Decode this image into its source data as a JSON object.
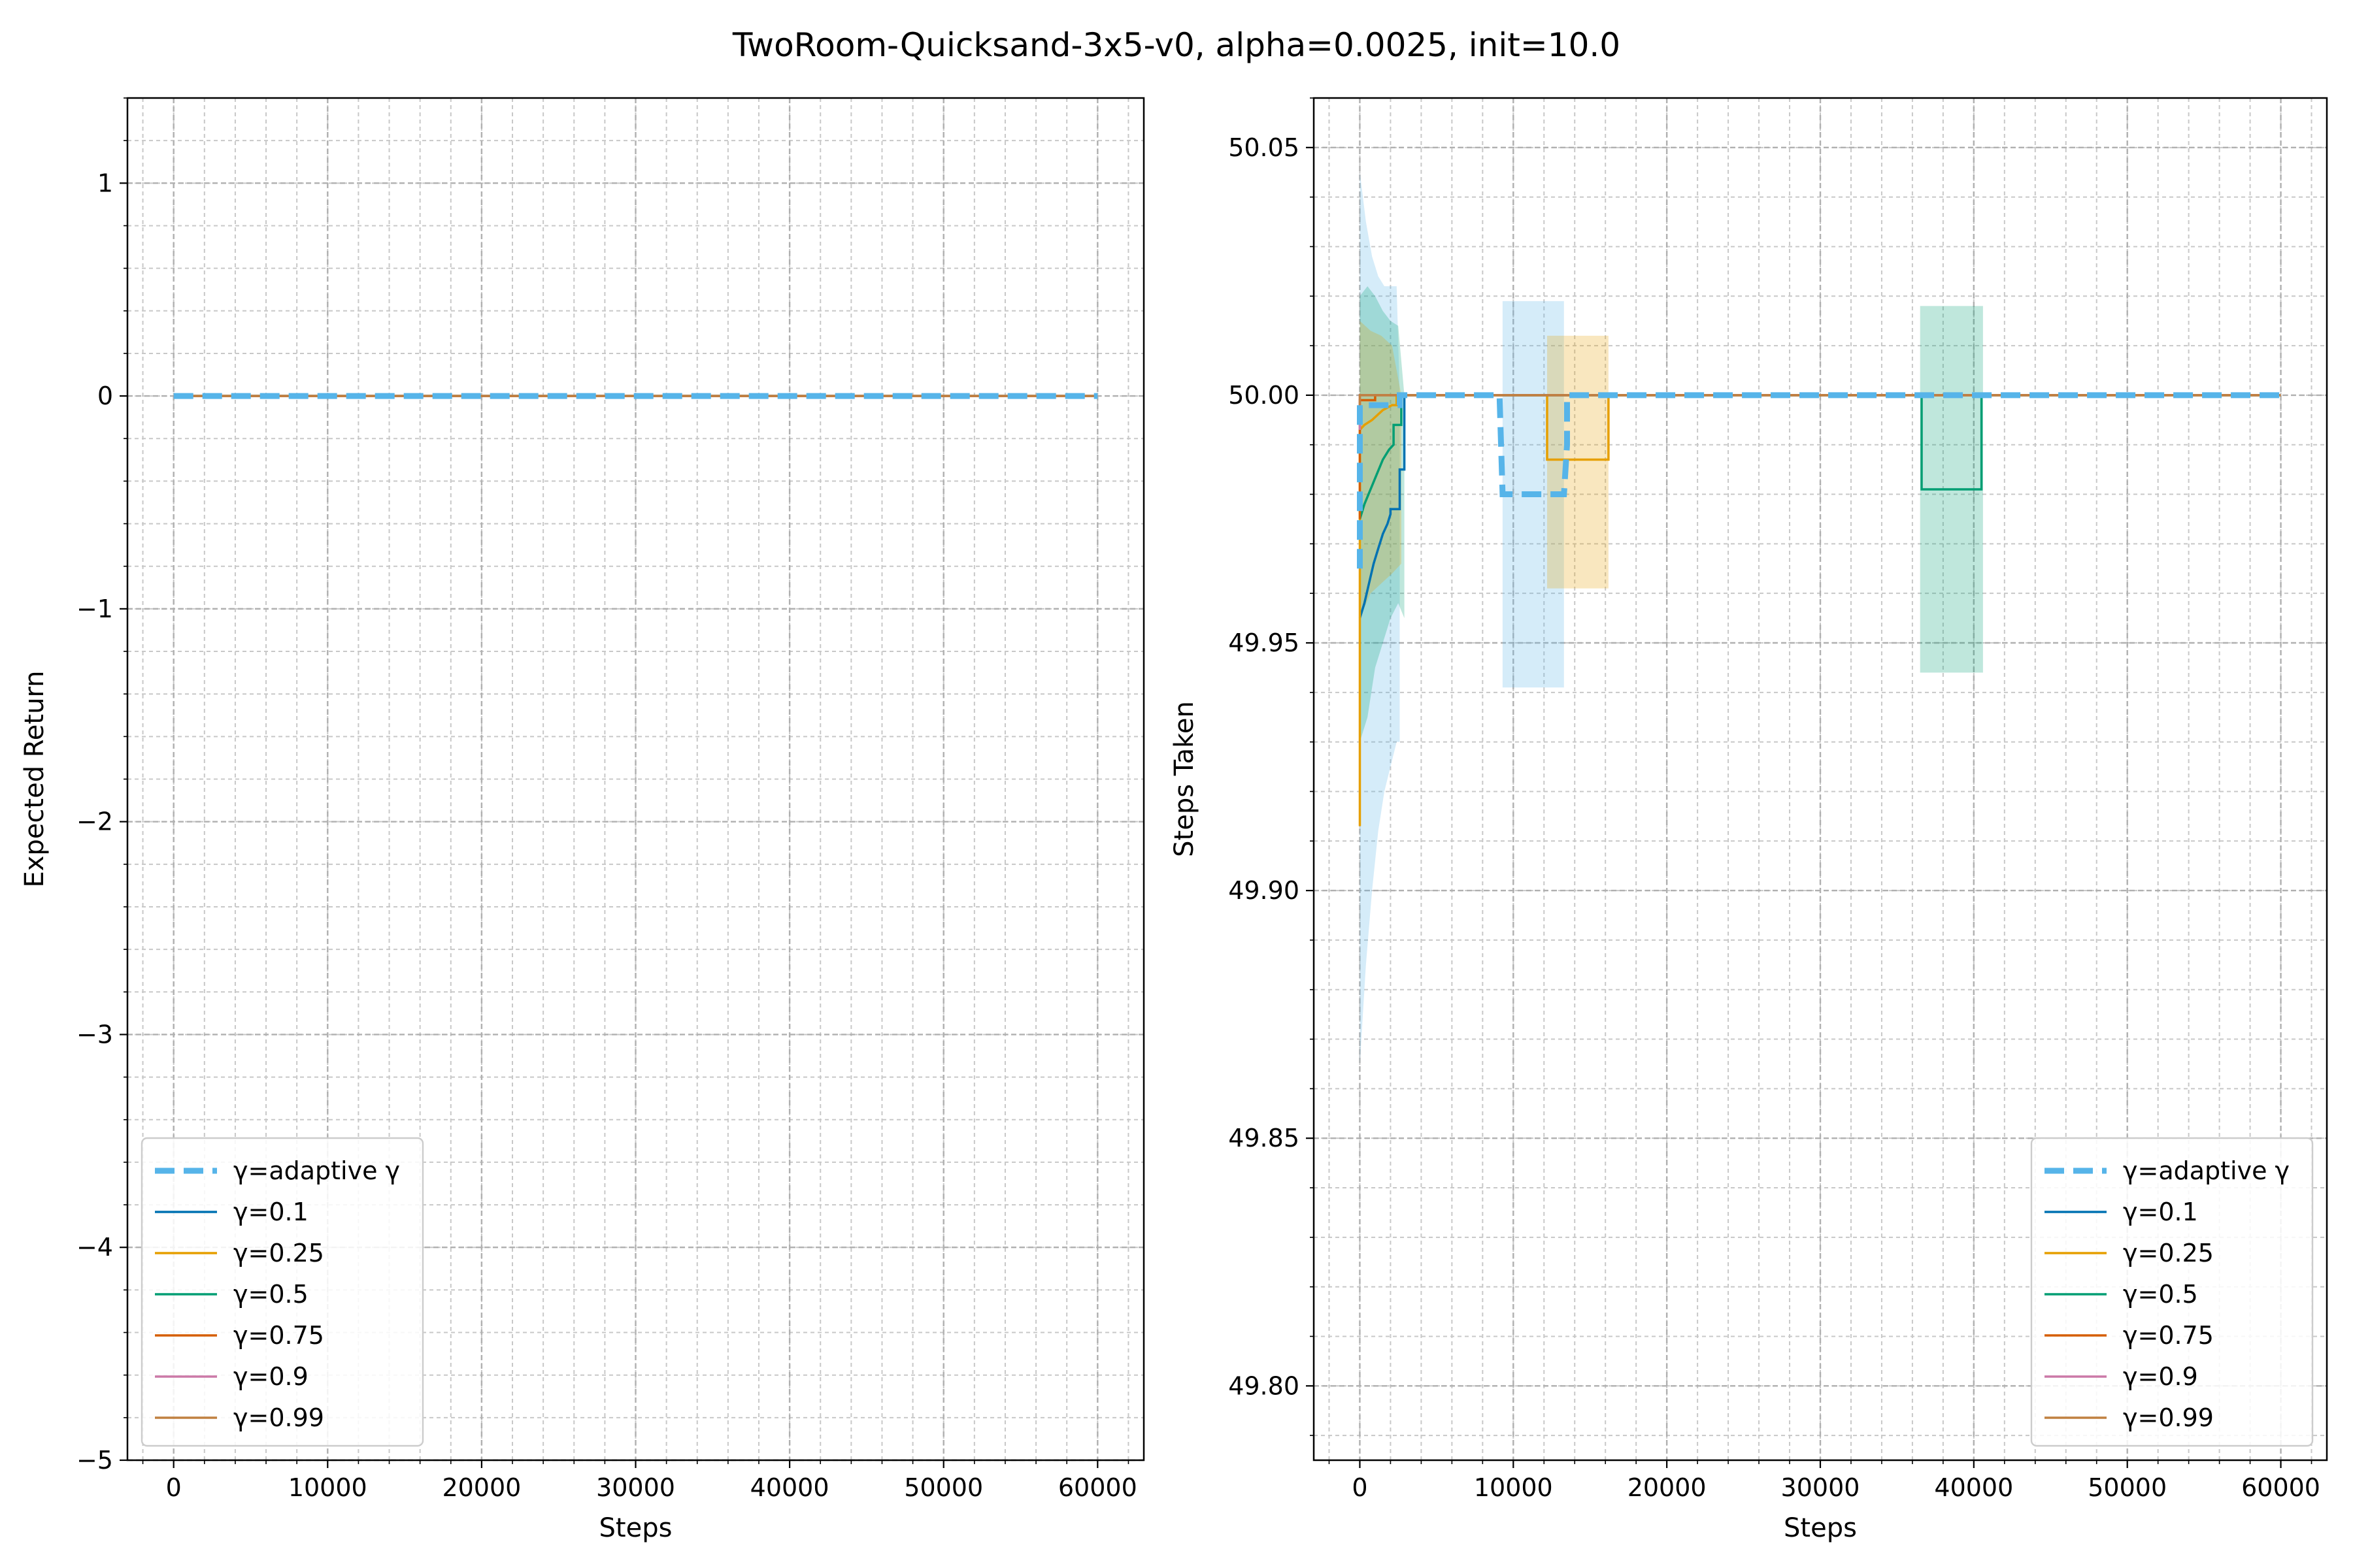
{
  "figure": {
    "title": "TwoRoom-Quicksand-3x5-v0, alpha=0.0025, init=10.0"
  },
  "styles": {
    "colors": {
      "adaptive": "#56B4E9",
      "g01": "#0072B2",
      "g025": "#E69F00",
      "g05": "#009E73",
      "g075": "#D55E00",
      "g09": "#CC79A7",
      "g099": "#C08040"
    }
  },
  "chart_data": [
    {
      "type": "line",
      "xlabel": "Steps",
      "ylabel": "Expected Return",
      "xlim": [
        -3000,
        63000
      ],
      "ylim": [
        -5,
        1.4
      ],
      "xticks": [
        0,
        10000,
        20000,
        30000,
        40000,
        50000,
        60000
      ],
      "xtick_labels": [
        "0",
        "10000",
        "20000",
        "30000",
        "40000",
        "50000",
        "60000"
      ],
      "yticks": [
        1,
        0,
        -1,
        -2,
        -3,
        -4,
        -5
      ],
      "ytick_labels": [
        "1",
        "0",
        "−1",
        "−2",
        "−3",
        "−4",
        "−5"
      ],
      "grid": true,
      "legend_position": "lower left",
      "series": [
        {
          "name": "γ=adaptive γ",
          "color_key": "adaptive",
          "dashed": true,
          "x": [
            0,
            60000
          ],
          "y": [
            0,
            0
          ]
        },
        {
          "name": "γ=0.1",
          "color_key": "g01",
          "x": [
            0,
            60000
          ],
          "y": [
            0,
            0
          ]
        },
        {
          "name": "γ=0.25",
          "color_key": "g025",
          "x": [
            0,
            60000
          ],
          "y": [
            0,
            0
          ]
        },
        {
          "name": "γ=0.5",
          "color_key": "g05",
          "x": [
            0,
            60000
          ],
          "y": [
            0,
            0
          ]
        },
        {
          "name": "γ=0.75",
          "color_key": "g075",
          "x": [
            0,
            60000
          ],
          "y": [
            0,
            0
          ]
        },
        {
          "name": "γ=0.9",
          "color_key": "g09",
          "x": [
            0,
            60000
          ],
          "y": [
            0,
            0
          ]
        },
        {
          "name": "γ=0.99",
          "color_key": "g099",
          "x": [
            0,
            60000
          ],
          "y": [
            0,
            0
          ]
        }
      ]
    },
    {
      "type": "line",
      "xlabel": "Steps",
      "ylabel": "Steps Taken",
      "xlim": [
        -3000,
        63000
      ],
      "ylim": [
        49.785,
        50.06
      ],
      "xticks": [
        0,
        10000,
        20000,
        30000,
        40000,
        50000,
        60000
      ],
      "xtick_labels": [
        "0",
        "10000",
        "20000",
        "30000",
        "40000",
        "50000",
        "60000"
      ],
      "yticks": [
        50.05,
        50.0,
        49.95,
        49.9,
        49.85,
        49.8
      ],
      "ytick_labels": [
        "50.05",
        "50.00",
        "49.95",
        "49.90",
        "49.85",
        "49.80"
      ],
      "grid": true,
      "legend_position": "lower right",
      "bands": [
        {
          "color_key": "adaptive",
          "x": [
            0,
            400,
            800,
            1200,
            1600,
            2000,
            2400,
            2600
          ],
          "upper": [
            50.045,
            50.035,
            50.028,
            50.024,
            50.022,
            50.022,
            50.022,
            50.0
          ],
          "lower": [
            49.865,
            49.885,
            49.9,
            49.912,
            49.92,
            49.925,
            49.93,
            49.93
          ]
        },
        {
          "color_key": "g05",
          "x": [
            0,
            500,
            1000,
            1500,
            2000,
            2500,
            2900
          ],
          "upper": [
            50.02,
            50.022,
            50.02,
            50.017,
            50.015,
            50.014,
            50.0
          ],
          "lower": [
            49.93,
            49.935,
            49.945,
            49.95,
            49.955,
            49.958,
            49.955
          ]
        },
        {
          "color_key": "g025",
          "x": [
            0,
            700,
            1400,
            2100,
            2700
          ],
          "upper": [
            50.015,
            50.013,
            50.012,
            50.01,
            50.0
          ],
          "lower": [
            49.955,
            49.96,
            49.962,
            49.964,
            49.966
          ]
        },
        {
          "color_key": "adaptive",
          "x": [
            9300,
            13300
          ],
          "upper": [
            50.019,
            50.019
          ],
          "lower": [
            49.941,
            49.941
          ]
        },
        {
          "color_key": "g025",
          "x": [
            12200,
            16200
          ],
          "upper": [
            50.012,
            50.012
          ],
          "lower": [
            49.961,
            49.961
          ]
        },
        {
          "color_key": "g05",
          "x": [
            36500,
            40600
          ],
          "upper": [
            50.018,
            50.018
          ],
          "lower": [
            49.944,
            49.944
          ]
        }
      ],
      "series": [
        {
          "name": "γ=adaptive γ",
          "color_key": "adaptive",
          "dashed": true,
          "x": [
            0,
            0,
            2600,
            2600,
            9000,
            9100,
            9300,
            13300,
            13500,
            13500,
            60000
          ],
          "y": [
            49.965,
            49.998,
            49.998,
            50.0,
            50.0,
            50.0,
            49.98,
            49.98,
            49.99,
            50.0,
            50.0
          ]
        },
        {
          "name": "γ=0.1",
          "color_key": "g01",
          "x": [
            0,
            300,
            600,
            900,
            1200,
            1500,
            1800,
            2000,
            2000,
            2600,
            2600,
            2900,
            2900,
            60000
          ],
          "y": [
            49.955,
            49.958,
            49.962,
            49.966,
            49.969,
            49.972,
            49.974,
            49.976,
            49.977,
            49.977,
            49.985,
            49.985,
            50.0,
            50.0
          ]
        },
        {
          "name": "γ=0.25",
          "color_key": "g025",
          "x": [
            0,
            0,
            300,
            800,
            1500,
            2100,
            2400,
            2400,
            12200,
            12200,
            16200,
            16200,
            60000
          ],
          "y": [
            49.913,
            49.993,
            49.994,
            49.995,
            49.997,
            49.998,
            49.998,
            50.0,
            50.0,
            49.987,
            49.987,
            50.0,
            50.0
          ]
        },
        {
          "name": "γ=0.5",
          "color_key": "g05",
          "x": [
            0,
            300,
            700,
            1100,
            1500,
            1900,
            2200,
            2200,
            2700,
            2700,
            36600,
            36600,
            40500,
            40500,
            60000
          ],
          "y": [
            49.975,
            49.978,
            49.981,
            49.984,
            49.987,
            49.989,
            49.99,
            49.994,
            49.994,
            50.0,
            50.0,
            49.981,
            49.981,
            50.0,
            50.0
          ]
        },
        {
          "name": "γ=0.75",
          "color_key": "g075",
          "x": [
            0,
            0,
            1000,
            1000,
            60000
          ],
          "y": [
            49.975,
            49.999,
            49.999,
            50.0,
            50.0
          ]
        },
        {
          "name": "γ=0.9",
          "color_key": "g09",
          "x": [
            0,
            0,
            60000
          ],
          "y": [
            49.993,
            50.0,
            50.0
          ]
        },
        {
          "name": "γ=0.99",
          "color_key": "g099",
          "x": [
            0,
            0,
            60000
          ],
          "y": [
            49.996,
            50.0,
            50.0
          ]
        }
      ]
    }
  ]
}
